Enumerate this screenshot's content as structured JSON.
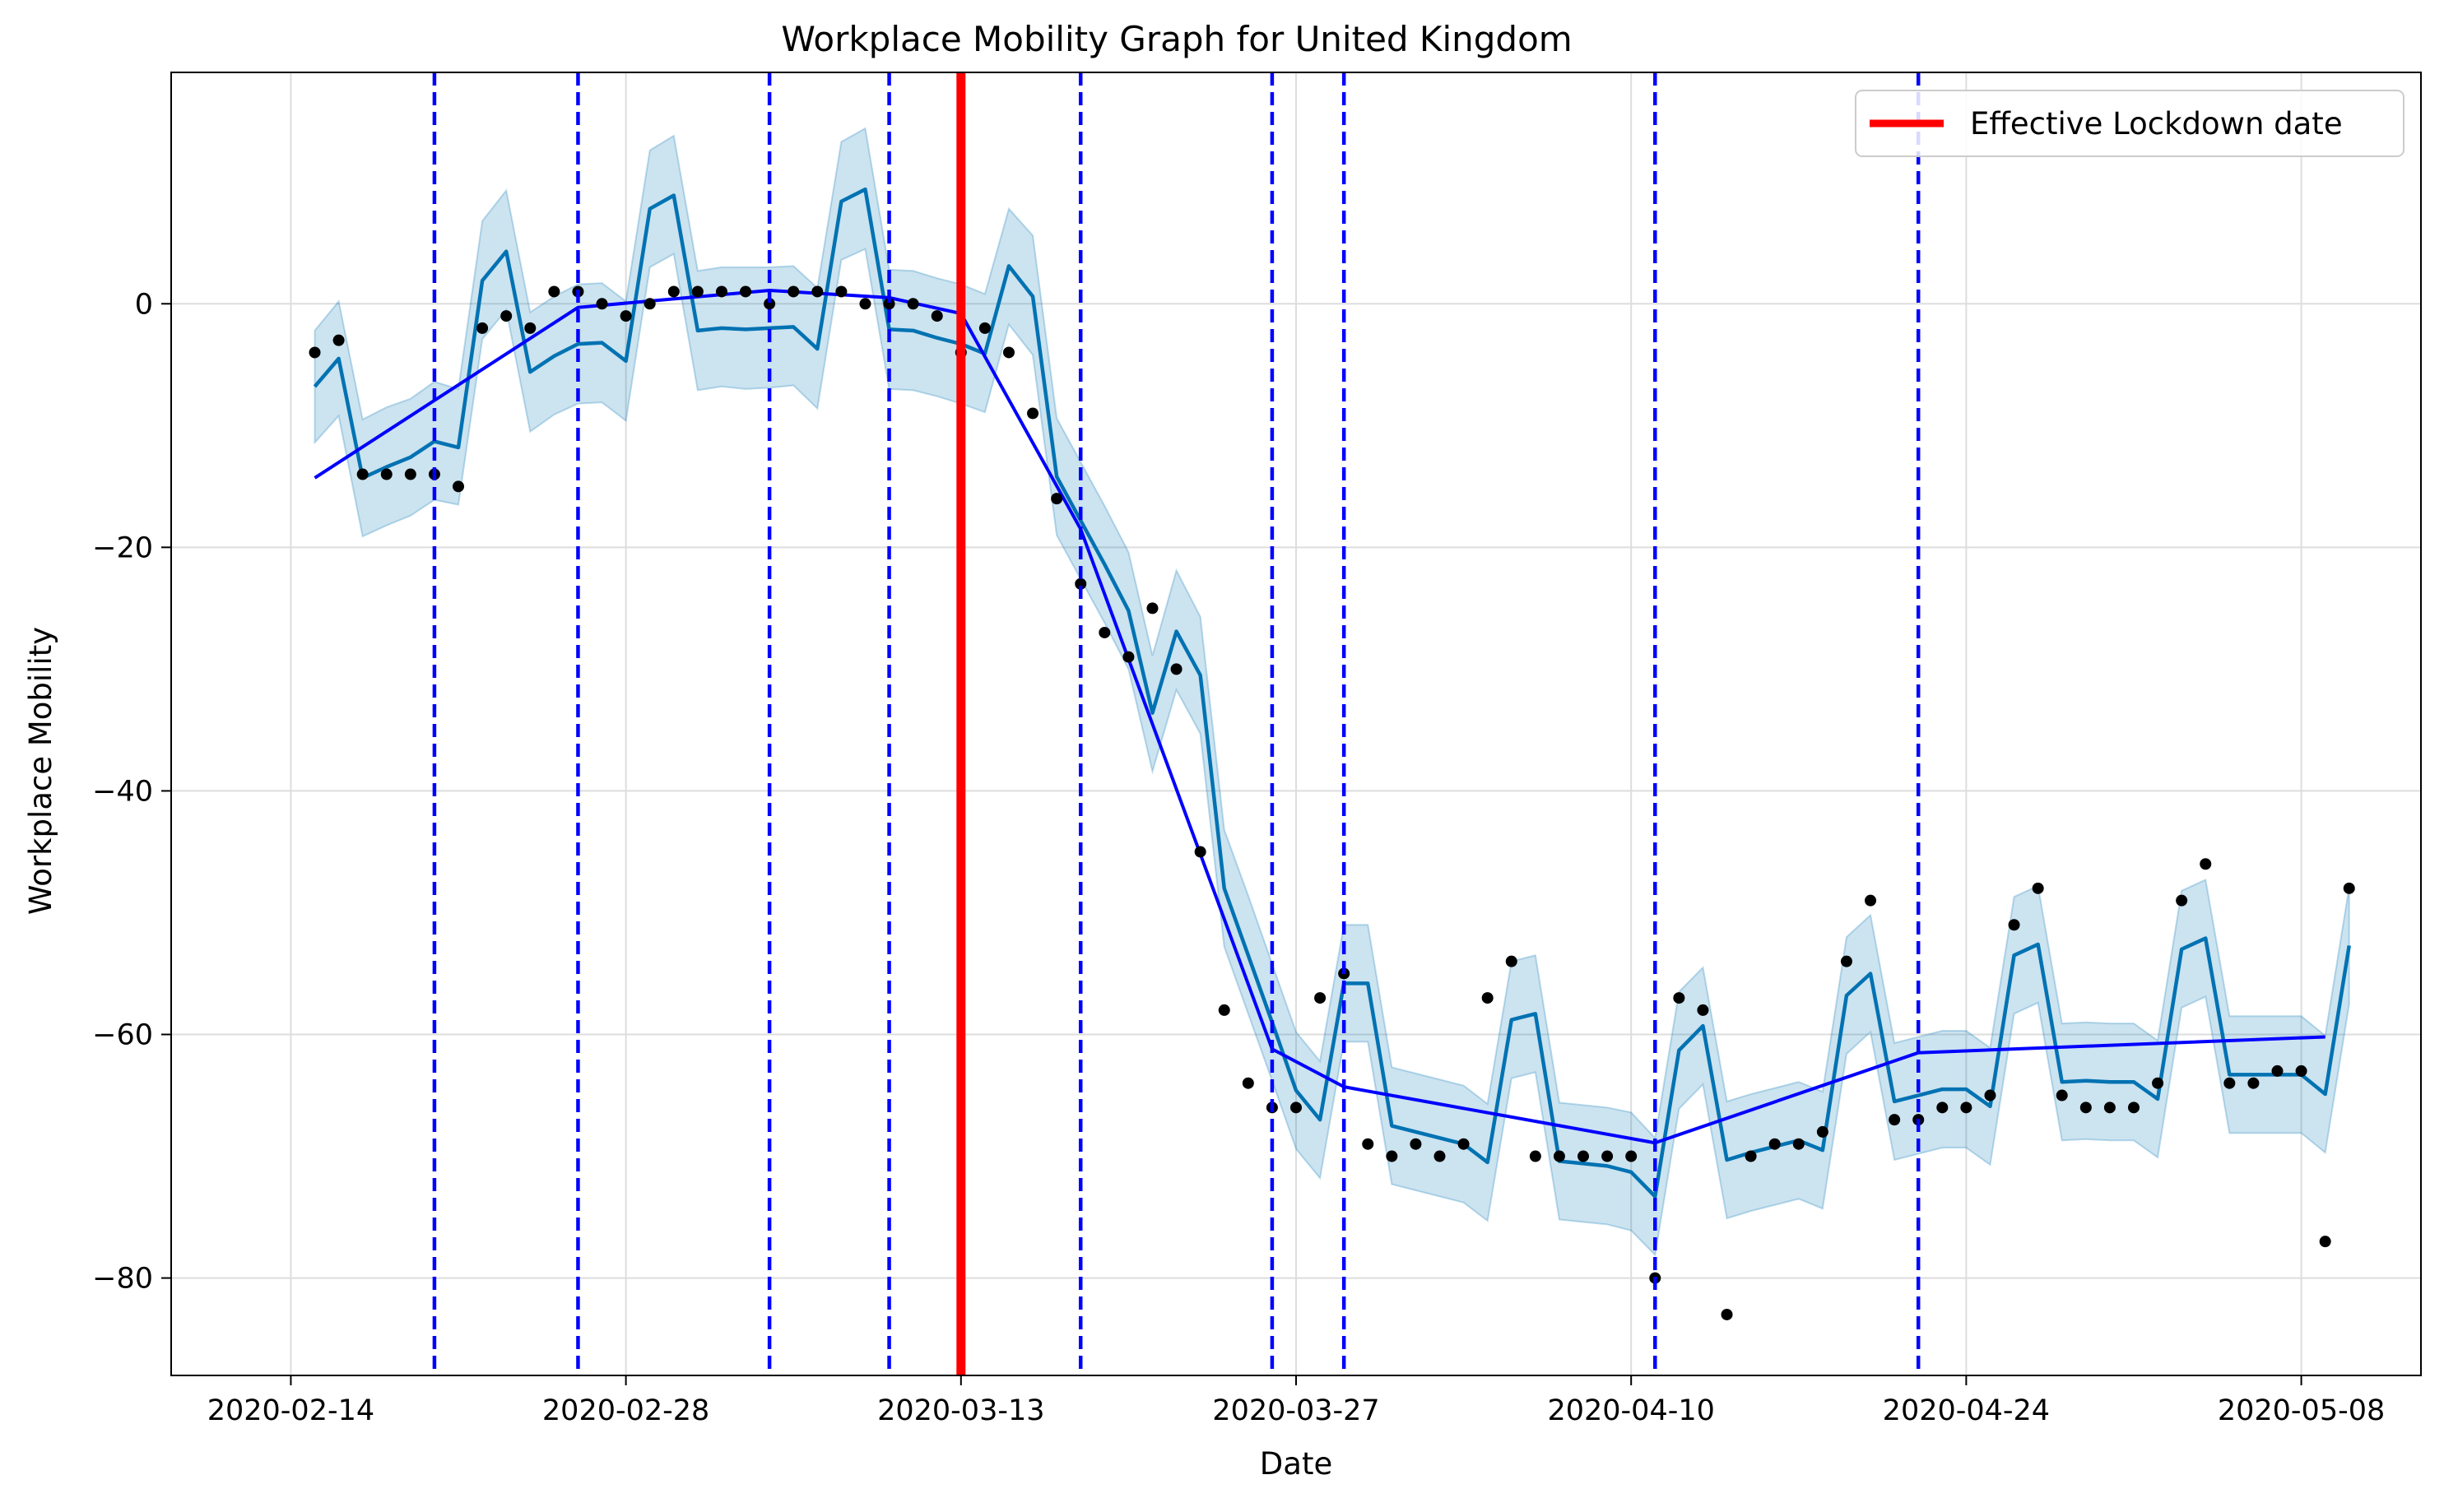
{
  "chart_data": {
    "type": "line",
    "title": "Workplace Mobility Graph for United Kingdom",
    "xlabel": "Date",
    "ylabel": "Workplace Mobility",
    "x_start": "2020-02-15",
    "xlim": [
      "2020-02-09",
      "2020-05-13"
    ],
    "ylim": [
      -88,
      19
    ],
    "x_ticks": [
      "2020-02-14",
      "2020-02-28",
      "2020-03-13",
      "2020-03-27",
      "2020-04-10",
      "2020-04-24",
      "2020-05-08"
    ],
    "y_ticks": [
      0,
      -20,
      -40,
      -60,
      -80
    ],
    "grid": true,
    "legend": {
      "position": "top-right",
      "entries": [
        {
          "label": "Effective Lockdown date",
          "color": "#ff0000"
        }
      ]
    },
    "colors": {
      "observed": "#000000",
      "yhat": "#0072b2",
      "interval": "#0072b2",
      "trend": "#0000ff",
      "changepoint": "#0000ff",
      "lockdown": "#ff0000"
    },
    "lockdown_date": "2020-03-13",
    "changepoints": [
      "2020-02-20",
      "2020-02-26",
      "2020-03-05",
      "2020-03-10",
      "2020-03-18",
      "2020-03-26",
      "2020-03-29",
      "2020-04-11",
      "2020-04-22"
    ],
    "series": [
      {
        "name": "observed",
        "kind": "scatter",
        "values": [
          -4,
          -3,
          -14,
          -14,
          -14,
          -14,
          -15,
          -2,
          -1,
          -2,
          1,
          1,
          0,
          -1,
          0,
          1,
          1,
          1,
          1,
          0,
          1,
          1,
          1,
          0,
          0,
          0,
          -1,
          -4,
          -2,
          -4,
          -9,
          -16,
          -23,
          -27,
          -29,
          -25,
          -30,
          -45,
          -58,
          -64,
          -66,
          -66,
          -57,
          -55,
          -69,
          -70,
          -69,
          -70,
          -69,
          -57,
          -54,
          -70,
          -70,
          -70,
          -70,
          -70,
          -80,
          -57,
          -58,
          -83,
          -70,
          -69,
          -69,
          -68,
          -54,
          -49,
          -67,
          -67,
          -66,
          -66,
          -65,
          -51,
          -48,
          -65,
          -66,
          -66,
          -66,
          -64,
          -49,
          -46,
          -64,
          -64,
          -63,
          -63,
          -77,
          -48
        ]
      },
      {
        "name": "forecast",
        "kind": "line",
        "values": [
          -6.8,
          -4.5,
          -14.3,
          -13.4,
          -12.6,
          -11.3,
          -11.8,
          1.9,
          4.3,
          -5.6,
          -4.3,
          -3.3,
          -3.2,
          -4.7,
          7.8,
          8.9,
          -2.2,
          -2.0,
          -2.1,
          -2.0,
          -1.9,
          -3.7,
          8.4,
          9.4,
          -2.1,
          -2.2,
          -2.8,
          -3.3,
          -4.1,
          3.1,
          0.6,
          -14.2,
          -17.8,
          -21.4,
          -25.2,
          -33.6,
          -26.9,
          -30.5,
          -48.0,
          -53.5,
          -59.0,
          -64.6,
          -67.0,
          -55.8,
          -55.8,
          -67.5,
          -68.0,
          -68.5,
          -69.0,
          -70.5,
          -58.8,
          -58.3,
          -70.4,
          -70.6,
          -70.8,
          -71.3,
          -73.3,
          -61.3,
          -59.3,
          -70.3,
          -69.7,
          -69.2,
          -68.7,
          -69.5,
          -56.8,
          -55.0,
          -65.5,
          -65.0,
          -64.5,
          -64.5,
          -65.9,
          -53.5,
          -52.6,
          -63.9,
          -63.8,
          -63.9,
          -63.9,
          -65.3,
          -53.0,
          -52.1,
          -63.3,
          -63.3,
          -63.3,
          -63.3,
          -64.9,
          -52.7
        ]
      },
      {
        "name": "forecast upper",
        "kind": "band",
        "values": [
          -2.2,
          0.2,
          -9.5,
          -8.5,
          -7.8,
          -6.4,
          -7.0,
          6.8,
          9.3,
          -0.7,
          0.6,
          1.6,
          1.7,
          0.2,
          12.6,
          13.8,
          2.7,
          3.0,
          3.0,
          3.0,
          3.1,
          1.3,
          13.3,
          14.4,
          2.8,
          2.7,
          2.1,
          1.6,
          0.8,
          7.8,
          5.6,
          -9.4,
          -13.0,
          -16.6,
          -20.4,
          -28.9,
          -21.9,
          -25.7,
          -43.2,
          -48.6,
          -54.2,
          -59.8,
          -62.2,
          -51.0,
          -51.0,
          -62.7,
          -63.2,
          -63.7,
          -64.2,
          -65.7,
          -54.0,
          -53.5,
          -65.6,
          -65.8,
          -66.0,
          -66.4,
          -68.5,
          -56.5,
          -54.5,
          -65.5,
          -64.9,
          -64.4,
          -63.9,
          -64.7,
          -52.0,
          -50.2,
          -60.7,
          -60.2,
          -59.7,
          -59.7,
          -61.1,
          -48.7,
          -47.8,
          -59.1,
          -59.0,
          -59.1,
          -59.1,
          -60.5,
          -48.2,
          -47.3,
          -58.5,
          -58.5,
          -58.5,
          -58.5,
          -60.1,
          -47.9
        ]
      },
      {
        "name": "forecast lower",
        "kind": "band",
        "values": [
          -11.4,
          -9.2,
          -19.1,
          -18.2,
          -17.4,
          -16.1,
          -16.5,
          -2.9,
          -0.5,
          -10.5,
          -9.1,
          -8.2,
          -8.1,
          -9.6,
          3.0,
          4.1,
          -7.1,
          -6.8,
          -7.0,
          -6.9,
          -6.7,
          -8.6,
          3.6,
          4.5,
          -7.0,
          -7.1,
          -7.6,
          -8.2,
          -8.9,
          -1.7,
          -4.2,
          -19.0,
          -22.6,
          -26.2,
          -30.0,
          -38.4,
          -31.7,
          -35.3,
          -52.8,
          -58.3,
          -63.8,
          -69.4,
          -71.8,
          -60.6,
          -60.6,
          -72.3,
          -72.8,
          -73.3,
          -73.8,
          -75.3,
          -63.6,
          -63.1,
          -75.2,
          -75.4,
          -75.6,
          -76.1,
          -78.1,
          -66.1,
          -64.1,
          -75.1,
          -74.5,
          -74.0,
          -73.5,
          -74.3,
          -61.6,
          -59.8,
          -70.3,
          -69.8,
          -69.3,
          -69.3,
          -70.7,
          -58.3,
          -57.4,
          -68.7,
          -68.6,
          -68.7,
          -68.7,
          -70.1,
          -57.8,
          -56.9,
          -68.1,
          -68.1,
          -68.1,
          -68.1,
          -69.7,
          -57.5
        ]
      },
      {
        "name": "trend",
        "kind": "line",
        "x": [
          "2020-02-15",
          "2020-02-26",
          "2020-03-05",
          "2020-03-10",
          "2020-03-13",
          "2020-03-18",
          "2020-03-26",
          "2020-03-29",
          "2020-04-11",
          "2020-04-22",
          "2020-05-09"
        ],
        "values": [
          -14.3,
          -0.3,
          1.1,
          0.5,
          -0.8,
          -18.5,
          -61.2,
          -64.3,
          -68.9,
          -61.5,
          -60.2
        ]
      }
    ]
  }
}
